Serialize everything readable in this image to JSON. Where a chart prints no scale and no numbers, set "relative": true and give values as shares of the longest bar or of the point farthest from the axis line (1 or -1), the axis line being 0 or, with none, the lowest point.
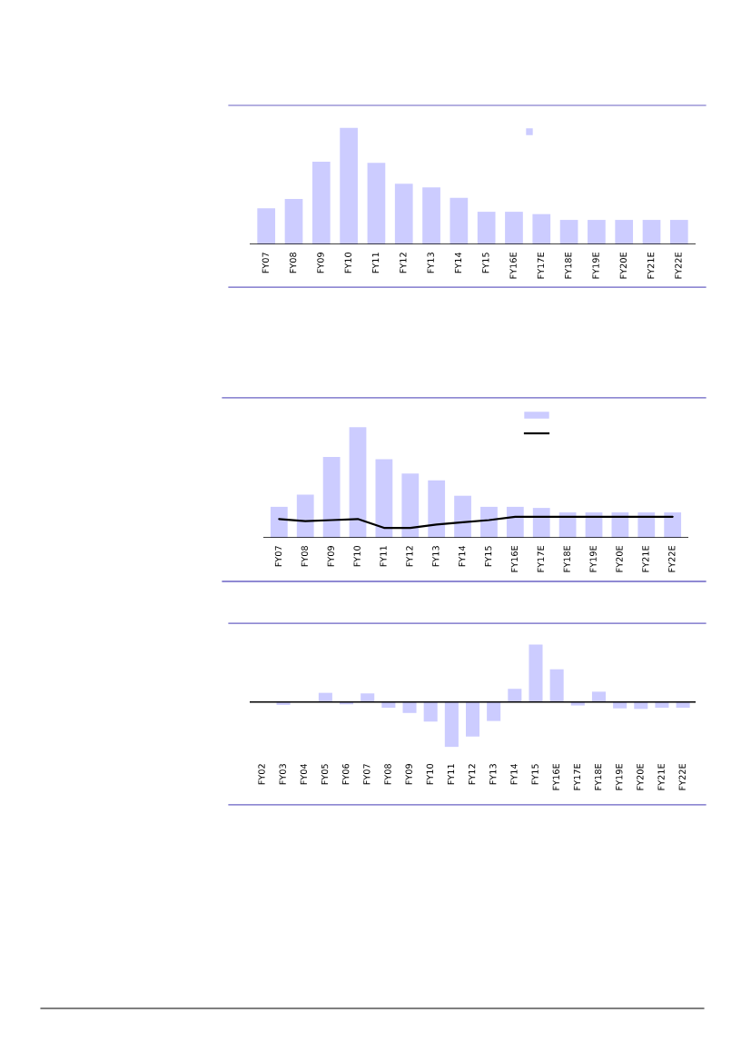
{
  "chart_data": [
    {
      "type": "bar",
      "relative": true,
      "color": "#ccccff",
      "categories": [
        "FY07",
        "FY08",
        "FY09",
        "FY10",
        "FY11",
        "FY12",
        "FY13",
        "FY14",
        "FY15",
        "FY16E",
        "FY17E",
        "FY18E",
        "FY19E",
        "FY20E",
        "FY21E",
        "FY22E"
      ],
      "values": [
        0.31,
        0.39,
        0.71,
        1,
        0.7,
        0.52,
        0.49,
        0.4,
        0.28,
        0.28,
        0.26,
        0.21,
        0.21,
        0.21,
        0.21,
        0.21
      ]
    },
    {
      "type": "bar",
      "relative": true,
      "categories": [
        "FY07",
        "FY08",
        "FY09",
        "FY10",
        "FY11",
        "FY12",
        "FY13",
        "FY14",
        "FY15",
        "FY16E",
        "FY17E",
        "FY18E",
        "FY19E",
        "FY20E",
        "FY21E",
        "FY22E"
      ],
      "series": [
        {
          "type": "bar",
          "color": "#ccccff",
          "values": [
            0.28,
            0.39,
            0.73,
            1,
            0.71,
            0.58,
            0.52,
            0.38,
            0.28,
            0.28,
            0.27,
            0.23,
            0.23,
            0.23,
            0.23,
            0.23
          ]
        },
        {
          "type": "line",
          "color": "#000000",
          "values": [
            0.17,
            0.15,
            0.16,
            0.17,
            0.09,
            0.09,
            0.12,
            0.14,
            0.16,
            0.19,
            0.19,
            0.19,
            0.19,
            0.19,
            0.19,
            0.19
          ]
        }
      ]
    },
    {
      "type": "bar",
      "relative": true,
      "color": "#ccccff",
      "categories": [
        "FY02",
        "FY03",
        "FY04",
        "FY05",
        "FY06",
        "FY07",
        "FY08",
        "FY09",
        "FY10",
        "FY11",
        "FY12",
        "FY13",
        "FY14",
        "FY15",
        "FY16E",
        "FY17E",
        "FY18E",
        "FY19E",
        "FY20E",
        "FY21E",
        "FY22E"
      ],
      "values": [
        0,
        -0.05,
        null,
        0.16,
        -0.04,
        0.15,
        -0.1,
        -0.19,
        -0.34,
        -0.78,
        -0.6,
        -0.33,
        0.23,
        1,
        0.57,
        -0.06,
        0.18,
        -0.11,
        -0.12,
        -0.1,
        -0.1
      ]
    }
  ]
}
